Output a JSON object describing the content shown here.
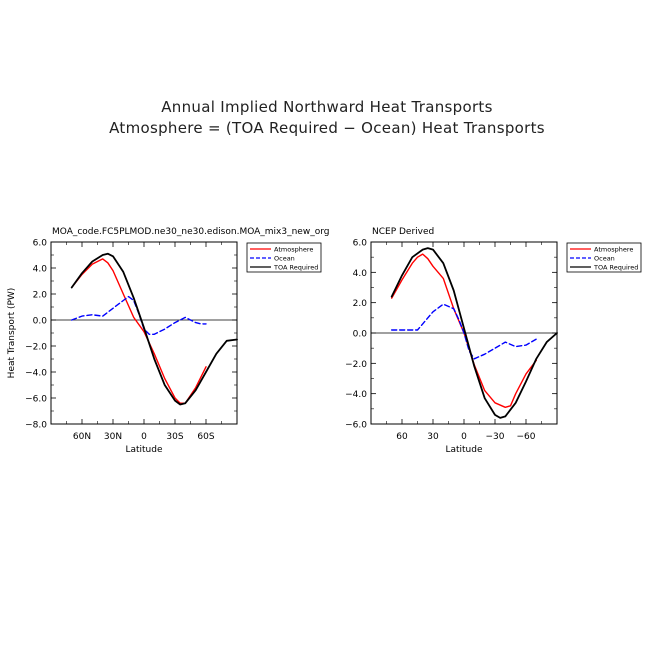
{
  "figure": {
    "title_line1": "Annual Implied Northward Heat Transports",
    "title_line2": "Atmosphere = (TOA Required − Ocean) Heat Transports"
  },
  "colors": {
    "atmosphere": "#ff0000",
    "ocean": "#0000ff",
    "toa": "#000000"
  },
  "chart_data": [
    {
      "type": "line",
      "title": "MOA_code.FC5PLMOD.ne30_ne30.edison.MOA_mix3_new_org",
      "xlabel": "Latitude",
      "ylabel": "Heat Transport (PW)",
      "xlim": [
        90,
        -90
      ],
      "ylim": [
        -8,
        6
      ],
      "xticks": [
        60,
        30,
        0,
        -30,
        -60
      ],
      "xticklabels": [
        "60N",
        "30N",
        "0",
        "30S",
        "60S"
      ],
      "yticks": [
        6,
        4,
        2,
        0,
        -2,
        -4,
        -6,
        -8
      ],
      "yticklabels": [
        "6.0",
        "4.0",
        "2.0",
        "0.0",
        "−2.0",
        "−4.0",
        "−6.0",
        "−8.0"
      ],
      "legend": [
        "Atmosphere",
        "Ocean",
        "TOA Required"
      ],
      "legend_position": "top-right",
      "series": [
        {
          "name": "Atmosphere",
          "style": "solid",
          "x": [
            70,
            60,
            50,
            40,
            35,
            30,
            20,
            10,
            0,
            -10,
            -20,
            -30,
            -35,
            -40,
            -50,
            -60
          ],
          "y": [
            2.5,
            3.5,
            4.3,
            4.7,
            4.4,
            3.8,
            2.0,
            0.2,
            -0.9,
            -2.6,
            -4.5,
            -6.0,
            -6.4,
            -6.4,
            -5.2,
            -3.6
          ]
        },
        {
          "name": "Ocean",
          "style": "dashed",
          "x": [
            70,
            60,
            50,
            40,
            30,
            20,
            15,
            10,
            5,
            0,
            -5,
            -10,
            -20,
            -30,
            -40,
            -45,
            -50,
            -55,
            -60
          ],
          "y": [
            0.0,
            0.3,
            0.4,
            0.3,
            0.9,
            1.5,
            1.8,
            1.5,
            0.5,
            -0.7,
            -1.1,
            -1.1,
            -0.7,
            -0.2,
            0.2,
            0.0,
            -0.2,
            -0.3,
            -0.3
          ]
        },
        {
          "name": "TOA Required",
          "style": "solid",
          "x": [
            70,
            60,
            50,
            40,
            35,
            30,
            20,
            10,
            0,
            -10,
            -20,
            -30,
            -35,
            -40,
            -50,
            -60,
            -70,
            -80,
            -90
          ],
          "y": [
            2.5,
            3.6,
            4.5,
            5.0,
            5.1,
            4.9,
            3.7,
            1.7,
            -0.6,
            -3.0,
            -5.0,
            -6.2,
            -6.5,
            -6.4,
            -5.4,
            -4.0,
            -2.6,
            -1.6,
            -1.5
          ]
        }
      ]
    },
    {
      "type": "line",
      "title": "NCEP Derived",
      "xlabel": "Latitude",
      "ylabel": "",
      "xlim": [
        90,
        -90
      ],
      "ylim": [
        -6,
        6
      ],
      "xticks": [
        60,
        30,
        0,
        -30,
        -60
      ],
      "xticklabels": [
        "60",
        "30",
        "0",
        "−30",
        "−60"
      ],
      "yticks": [
        6,
        4,
        2,
        0,
        -2,
        -4,
        -6
      ],
      "yticklabels": [
        "6.0",
        "4.0",
        "2.0",
        "0.0",
        "−2.0",
        "−4.0",
        "−6.0"
      ],
      "legend": [
        "Atmosphere",
        "Ocean",
        "TOA Required"
      ],
      "legend_position": "top-right",
      "series": [
        {
          "name": "Atmosphere",
          "style": "solid",
          "x": [
            70,
            60,
            50,
            45,
            40,
            35,
            30,
            20,
            10,
            0,
            -10,
            -20,
            -30,
            -40,
            -45,
            -50,
            -60,
            -70
          ],
          "y": [
            2.3,
            3.5,
            4.6,
            5.0,
            5.2,
            4.9,
            4.4,
            3.6,
            1.6,
            0.0,
            -2.1,
            -3.8,
            -4.6,
            -4.9,
            -4.8,
            -4.0,
            -2.7,
            -1.8
          ]
        },
        {
          "name": "Ocean",
          "style": "dashed",
          "x": [
            70,
            60,
            50,
            45,
            40,
            30,
            20,
            10,
            5,
            0,
            -5,
            -10,
            -20,
            -30,
            -40,
            -50,
            -60,
            -70
          ],
          "y": [
            0.2,
            0.2,
            0.2,
            0.2,
            0.6,
            1.4,
            1.9,
            1.6,
            0.9,
            0.0,
            -1.2,
            -1.7,
            -1.4,
            -1.0,
            -0.6,
            -0.9,
            -0.8,
            -0.4
          ]
        },
        {
          "name": "TOA Required",
          "style": "solid",
          "x": [
            70,
            60,
            50,
            40,
            35,
            30,
            20,
            10,
            0,
            -10,
            -20,
            -30,
            -35,
            -40,
            -50,
            -60,
            -70,
            -80,
            -90
          ],
          "y": [
            2.4,
            3.8,
            5.0,
            5.5,
            5.6,
            5.5,
            4.6,
            2.8,
            0.3,
            -2.2,
            -4.3,
            -5.4,
            -5.6,
            -5.5,
            -4.6,
            -3.2,
            -1.7,
            -0.6,
            0.0
          ]
        }
      ]
    }
  ]
}
